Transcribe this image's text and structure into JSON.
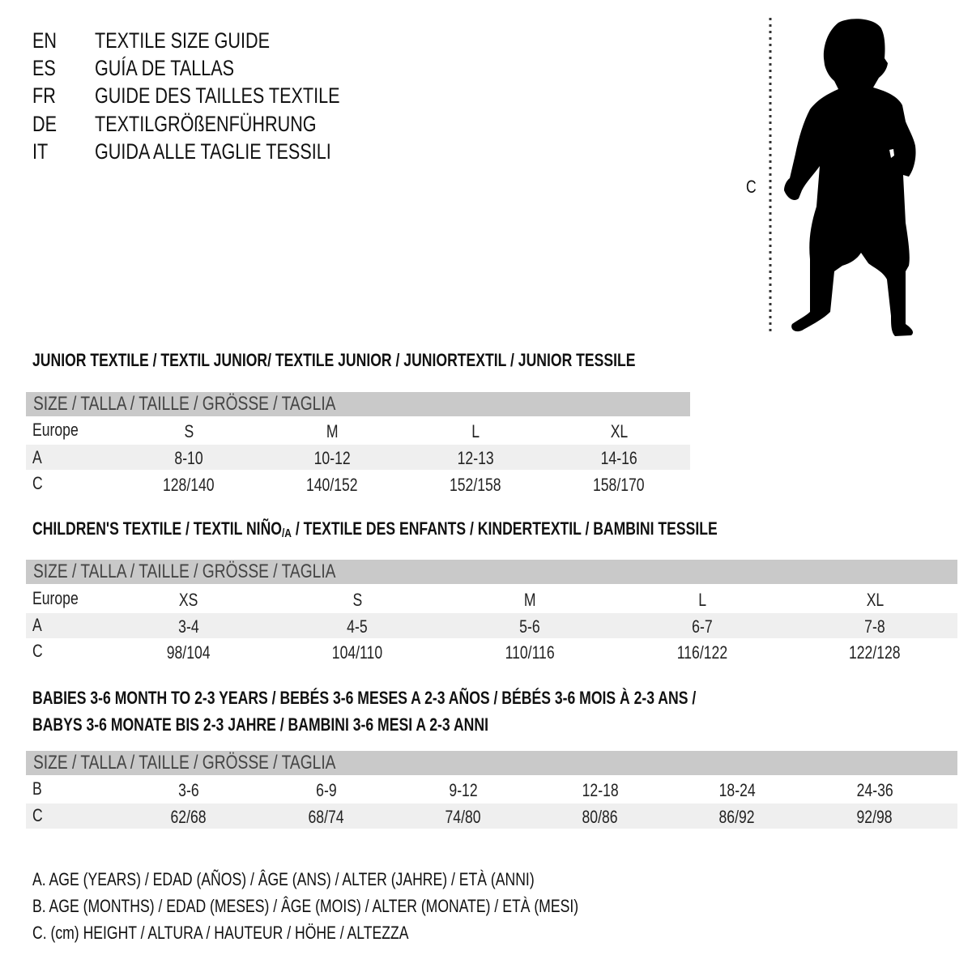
{
  "languages": [
    {
      "code": "EN",
      "title": "TEXTILE SIZE GUIDE"
    },
    {
      "code": "ES",
      "title": "GUÍA DE TALLAS"
    },
    {
      "code": "FR",
      "title": "GUIDE DES TAILLES TEXTILE"
    },
    {
      "code": "DE",
      "title": "TEXTILGRÖßENFÜHRUNG"
    },
    {
      "code": "IT",
      "title": "GUIDA ALLE TAGLIE TESSILI"
    }
  ],
  "figure": {
    "label": "C",
    "icon": "child-silhouette-icon"
  },
  "size_header": "SIZE / TALLA / TAILLE / GRÖSSE / TAGLIA",
  "junior": {
    "heading": "JUNIOR TEXTILE / TEXTIL JUNIOR/ TEXTILE JUNIOR / JUNIORTEXTIL / JUNIOR TESSILE",
    "rows": [
      {
        "label": "Europe",
        "values": [
          "S",
          "M",
          "L",
          "XL"
        ]
      },
      {
        "label": "A",
        "values": [
          "8-10",
          "10-12",
          "12-13",
          "14-16"
        ]
      },
      {
        "label": "C",
        "values": [
          "128/140",
          "140/152",
          "152/158",
          "158/170"
        ]
      }
    ]
  },
  "children": {
    "heading_pre": "CHILDREN'S TEXTILE / TEXTIL NIÑO",
    "heading_sub": "/A",
    "heading_post": " / TEXTILE DES ENFANTS / KINDERTEXTIL / BAMBINI TESSILE",
    "rows": [
      {
        "label": "Europe",
        "values": [
          "XS",
          "S",
          "M",
          "L",
          "XL"
        ]
      },
      {
        "label": "A",
        "values": [
          "3-4",
          "4-5",
          "5-6",
          "6-7",
          "7-8"
        ]
      },
      {
        "label": "C",
        "values": [
          "98/104",
          "104/110",
          "110/116",
          "116/122",
          "122/128"
        ]
      }
    ]
  },
  "babies": {
    "heading_line1": "BABIES 3-6 MONTH TO 2-3 YEARS / BEBÉS 3-6 MESES A 2-3 AÑOS / BÉBÉS 3-6 MOIS À 2-3 ANS /",
    "heading_line2": "BABYS 3-6 MONATE BIS 2-3 JAHRE / BAMBINI 3-6 MESI A 2-3 ANNI",
    "rows": [
      {
        "label": "B",
        "values": [
          "3-6",
          "6-9",
          "9-12",
          "12-18",
          "18-24",
          "24-36"
        ]
      },
      {
        "label": "C",
        "values": [
          "62/68",
          "68/74",
          "74/80",
          "80/86",
          "86/92",
          "92/98"
        ]
      }
    ]
  },
  "legend": [
    "A. AGE (YEARS) / EDAD (AÑOS) / ÂGE (ANS) / ALTER (JAHRE) / ETÀ (ANNI)",
    "B. AGE (MONTHS) / EDAD (MESES) / ÂGE (MOIS) / ALTER (MONATE) / ETÀ (MESI)",
    "C. (cm) HEIGHT / ALTURA / HAUTEUR / HÖHE / ALTEZZA"
  ],
  "colors": {
    "header_bar": "#c9c9c9",
    "stripe": "#efefef",
    "text": "#111111"
  }
}
